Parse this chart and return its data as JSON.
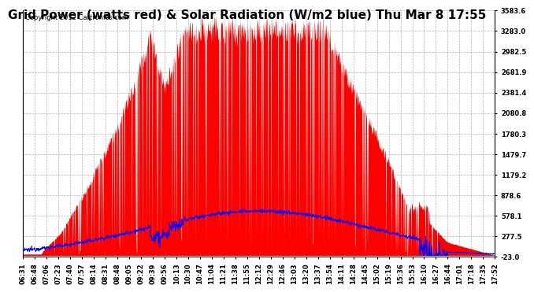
{
  "title": "Grid Power (watts red) & Solar Radiation (W/m2 blue) Thu Mar 8 17:55",
  "copyright": "Copyright 2012 Cartronics.com",
  "yticks": [
    3583.6,
    3283.0,
    2982.5,
    2681.9,
    2381.4,
    2080.8,
    1780.3,
    1479.7,
    1179.2,
    878.6,
    578.1,
    277.5,
    -23.0
  ],
  "ymin": -23.0,
  "ymax": 3583.6,
  "xtick_labels": [
    "06:31",
    "06:48",
    "07:06",
    "07:23",
    "07:40",
    "07:57",
    "08:14",
    "08:31",
    "08:48",
    "09:05",
    "09:22",
    "09:39",
    "09:56",
    "10:13",
    "10:30",
    "10:47",
    "11:04",
    "11:21",
    "11:38",
    "11:55",
    "12:12",
    "12:29",
    "12:46",
    "13:03",
    "13:20",
    "13:37",
    "13:54",
    "14:11",
    "14:28",
    "14:45",
    "15:02",
    "15:19",
    "15:36",
    "15:53",
    "16:10",
    "16:27",
    "16:44",
    "17:01",
    "17:18",
    "17:35",
    "17:52"
  ],
  "bg_color": "#ffffff",
  "plot_bg_color": "#ffffff",
  "grid_color": "#aaaaaa",
  "title_fontsize": 11,
  "copyright_fontsize": 6,
  "tick_fontsize": 6
}
